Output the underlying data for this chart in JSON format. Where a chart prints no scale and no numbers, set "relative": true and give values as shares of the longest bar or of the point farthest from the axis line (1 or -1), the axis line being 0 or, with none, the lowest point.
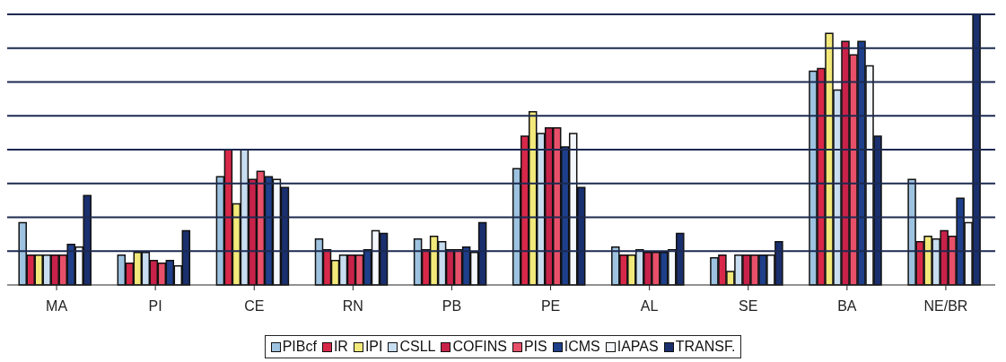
{
  "chart_data": {
    "type": "bar",
    "relative": true,
    "legend": "bottom",
    "ref_lines": [
      {
        "axis": "y",
        "value": 0.125,
        "color": "#1c2a50"
      },
      {
        "axis": "y",
        "value": 0.25,
        "color": "#1c2a50"
      },
      {
        "axis": "y",
        "value": 0.375,
        "color": "#1c2a50"
      },
      {
        "axis": "y",
        "value": 0.5,
        "color": "#1c2a50"
      },
      {
        "axis": "y",
        "value": 0.625,
        "color": "#1c2a50"
      },
      {
        "axis": "y",
        "value": 0.75,
        "color": "#1c2a50"
      },
      {
        "axis": "y",
        "value": 0.875,
        "color": "#1c2a50"
      },
      {
        "axis": "y",
        "value": 1,
        "color": "#1c2a50"
      }
    ],
    "categories": [
      "MA",
      "PI",
      "CE",
      "RN",
      "PB",
      "PE",
      "AL",
      "SE",
      "BA",
      "NE/BR"
    ],
    "series": [
      {
        "name": "PIBcf",
        "color": "#9ec3e0",
        "values": [
          0.23,
          0.11,
          0.4,
          0.17,
          0.17,
          0.43,
          0.14,
          0.1,
          0.79,
          0.39
        ]
      },
      {
        "name": "IR",
        "color": "#d8284a",
        "values": [
          0.11,
          0.08,
          0.5,
          0.13,
          0.13,
          0.55,
          0.11,
          0.11,
          0.8,
          0.16
        ]
      },
      {
        "name": "IPI",
        "color": "#f3e97a",
        "values": [
          0.11,
          0.12,
          0.3,
          0.09,
          0.18,
          0.64,
          0.11,
          0.05,
          0.93,
          0.18
        ]
      },
      {
        "name": "CSLL",
        "color": "#c8ddf0",
        "values": [
          0.11,
          0.12,
          0.5,
          0.11,
          0.16,
          0.56,
          0.13,
          0.11,
          0.72,
          0.17
        ]
      },
      {
        "name": "COFINS",
        "color": "#c8224a",
        "values": [
          0.11,
          0.09,
          0.39,
          0.11,
          0.13,
          0.58,
          0.12,
          0.11,
          0.9,
          0.2
        ]
      },
      {
        "name": "PIS",
        "color": "#e8506a",
        "values": [
          0.11,
          0.08,
          0.42,
          0.11,
          0.13,
          0.58,
          0.12,
          0.11,
          0.85,
          0.18
        ]
      },
      {
        "name": "ICMS",
        "color": "#1e3f8a",
        "values": [
          0.15,
          0.09,
          0.4,
          0.13,
          0.14,
          0.51,
          0.12,
          0.11,
          0.9,
          0.32
        ]
      },
      {
        "name": "IAPAS",
        "color": "#f4f8fc",
        "values": [
          0.14,
          0.07,
          0.39,
          0.2,
          0.12,
          0.56,
          0.13,
          0.11,
          0.81,
          0.23
        ]
      },
      {
        "name": "TRANSF.",
        "color": "#1a2f6e",
        "values": [
          0.33,
          0.2,
          0.36,
          0.19,
          0.23,
          0.36,
          0.19,
          0.16,
          0.55,
          1
        ]
      }
    ]
  }
}
